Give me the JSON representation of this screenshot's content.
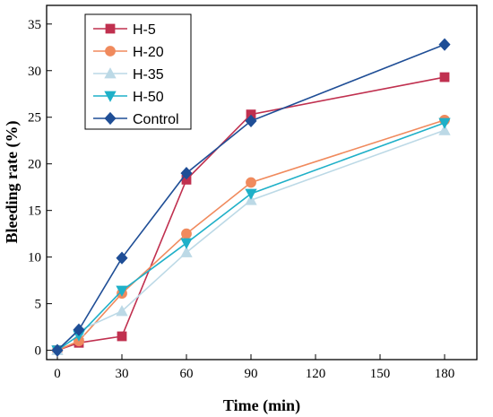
{
  "chart_data": {
    "type": "line",
    "xlabel": "Time (min)",
    "ylabel": "Bleeding rate (%)",
    "xlim": [
      -5,
      195
    ],
    "ylim": [
      -1,
      37
    ],
    "x_ticks": [
      0,
      30,
      60,
      90,
      120,
      150,
      180
    ],
    "y_ticks": [
      0,
      5,
      10,
      15,
      20,
      25,
      30,
      35
    ],
    "grid": false,
    "legend_position": "top-left",
    "series": [
      {
        "name": "H-5",
        "color": "#c0304f",
        "marker": "square",
        "x": [
          0,
          10,
          30,
          60,
          90,
          180
        ],
        "y": [
          0,
          0.8,
          1.5,
          18.3,
          25.3,
          29.3
        ]
      },
      {
        "name": "H-20",
        "color": "#f08a5d",
        "marker": "circle",
        "x": [
          0,
          10,
          30,
          60,
          90,
          180
        ],
        "y": [
          0,
          1.0,
          6.1,
          12.5,
          18.0,
          24.7
        ]
      },
      {
        "name": "H-35",
        "color": "#bcd9e6",
        "marker": "triangle-up",
        "x": [
          0,
          10,
          30,
          60,
          90,
          180
        ],
        "y": [
          0,
          2.1,
          4.2,
          10.5,
          16.1,
          23.6
        ]
      },
      {
        "name": "H-50",
        "color": "#1fb0c8",
        "marker": "triangle-down",
        "x": [
          0,
          10,
          30,
          60,
          90,
          180
        ],
        "y": [
          0,
          1.6,
          6.4,
          11.5,
          16.8,
          24.4
        ]
      },
      {
        "name": "Control",
        "color": "#1f4e96",
        "marker": "diamond",
        "x": [
          0,
          10,
          30,
          60,
          90,
          180
        ],
        "y": [
          0,
          2.2,
          9.9,
          19.0,
          24.6,
          32.8
        ]
      }
    ]
  }
}
